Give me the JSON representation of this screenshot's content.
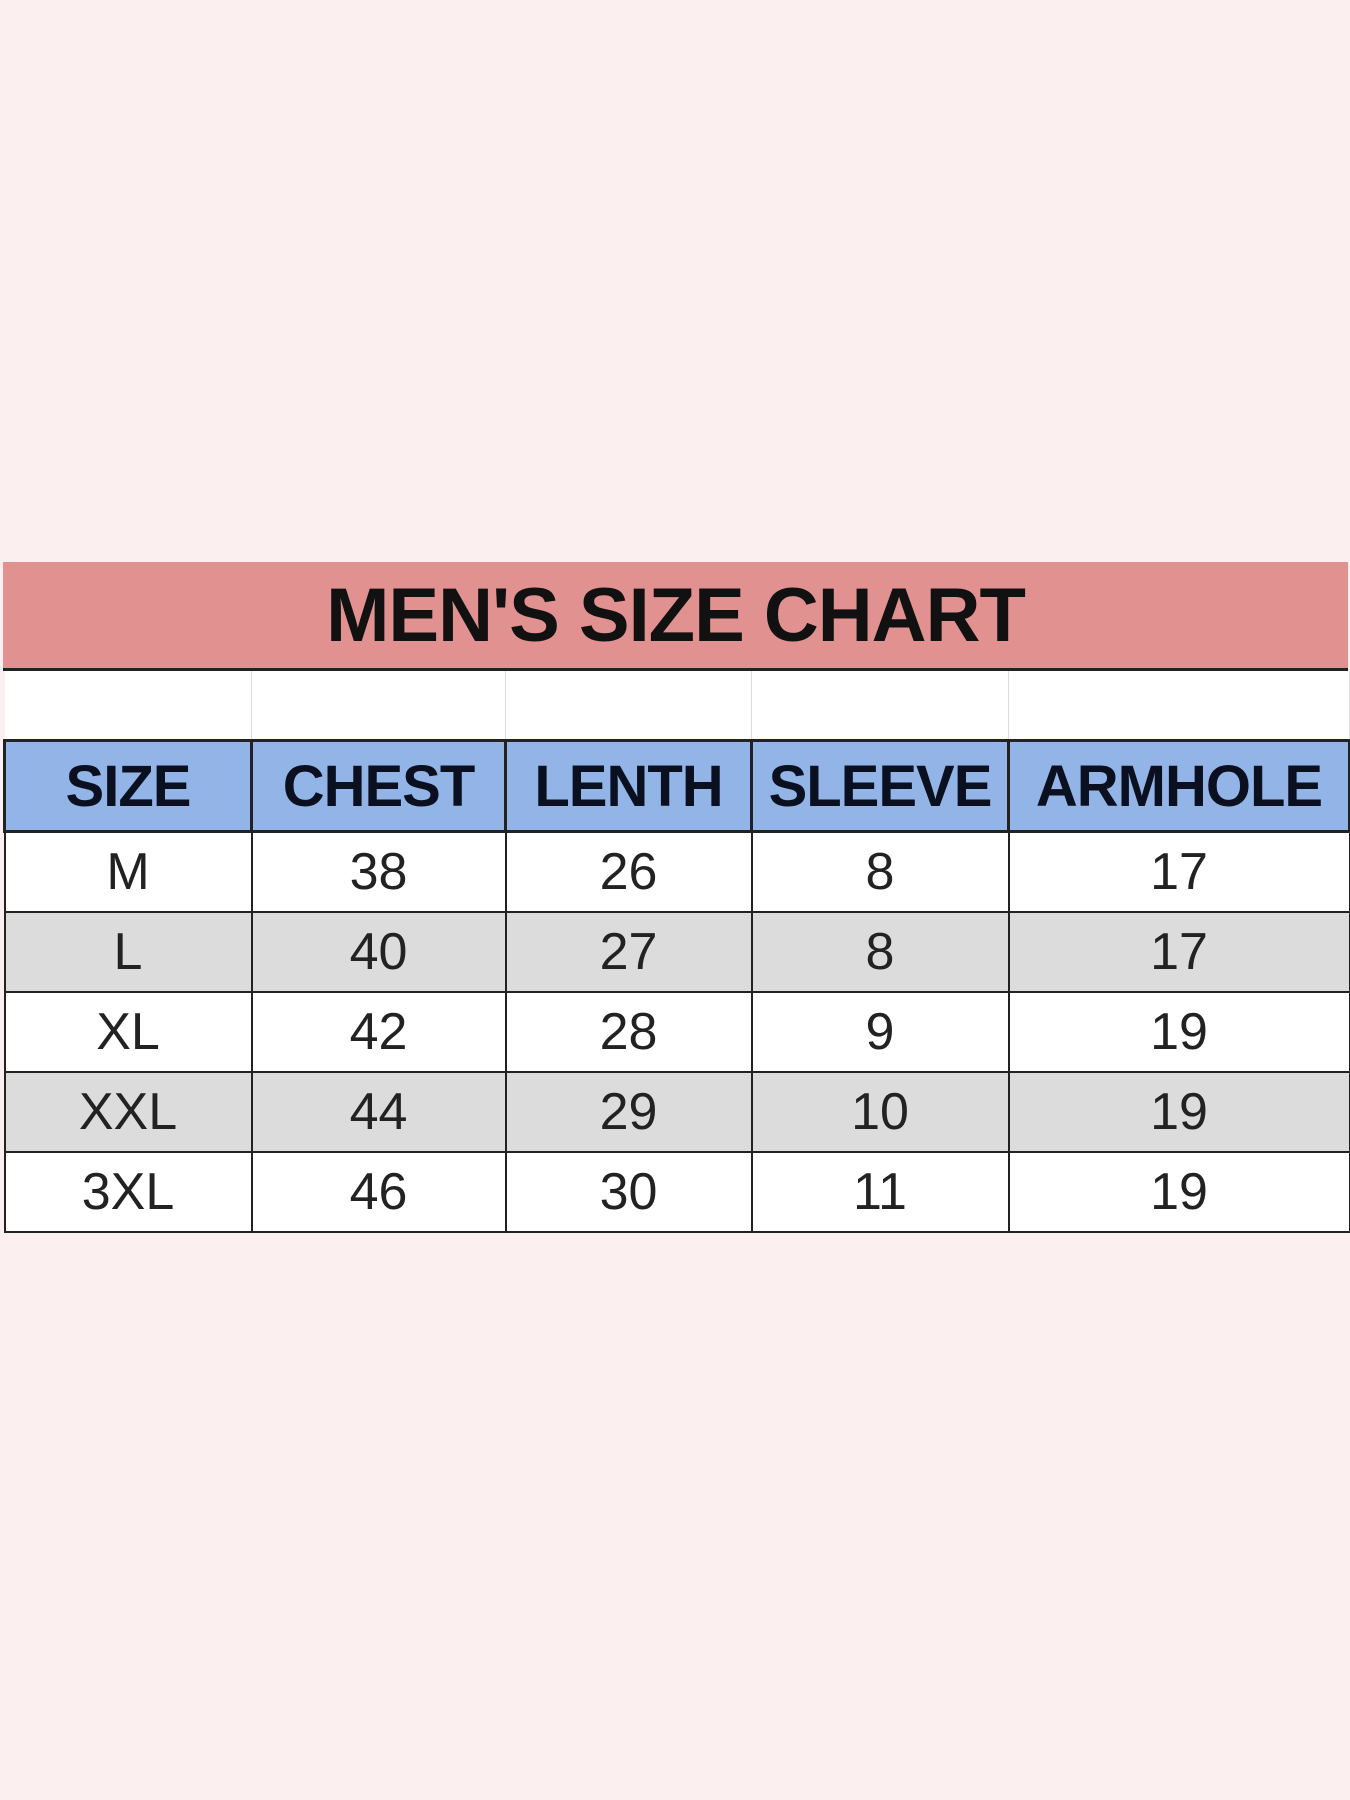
{
  "title": "MEN'S SIZE CHART",
  "colors": {
    "title_bg": "#e09190",
    "header_bg": "#93b4e6",
    "stripe_bg": "#dcdcdc",
    "page_bg": "#fbf0ef"
  },
  "headers": [
    "SIZE",
    "CHEST",
    "LENTH",
    "SLEEVE",
    "ARMHOLE"
  ],
  "rows": [
    [
      "M",
      "38",
      "26",
      "8",
      "17"
    ],
    [
      "L",
      "40",
      "27",
      "8",
      "17"
    ],
    [
      "XL",
      "42",
      "28",
      "9",
      "19"
    ],
    [
      "XXL",
      "44",
      "29",
      "10",
      "19"
    ],
    [
      "3XL",
      "46",
      "30",
      "11",
      "19"
    ]
  ]
}
